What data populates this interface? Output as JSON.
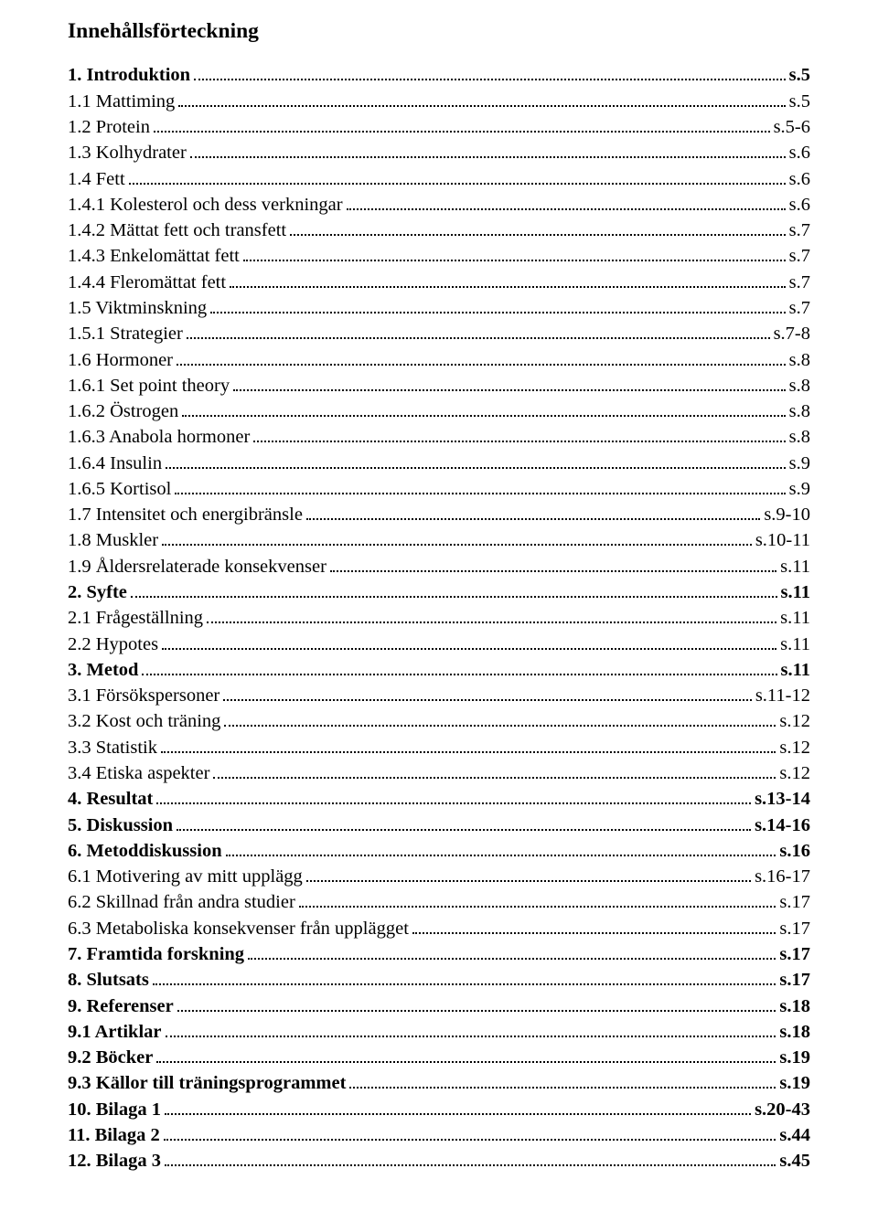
{
  "title": "Innehållsförteckning",
  "entries": [
    {
      "label": "1. Introduktion",
      "page": "s.5",
      "bold": true
    },
    {
      "label": "1.1 Mattiming",
      "page": "s.5",
      "bold": false
    },
    {
      "label": "1.2 Protein",
      "page": "s.5-6",
      "bold": false
    },
    {
      "label": "1.3 Kolhydrater",
      "page": "s.6",
      "bold": false
    },
    {
      "label": "1.4 Fett",
      "page": "s.6",
      "bold": false
    },
    {
      "label": "1.4.1 Kolesterol och dess verkningar",
      "page": "s.6",
      "bold": false
    },
    {
      "label": "1.4.2 Mättat fett och transfett",
      "page": "s.7",
      "bold": false
    },
    {
      "label": "1.4.3 Enkelomättat fett",
      "page": "s.7",
      "bold": false
    },
    {
      "label": "1.4.4 Fleromättat fett",
      "page": "s.7",
      "bold": false
    },
    {
      "label": "1.5 Viktminskning",
      "page": "s.7",
      "bold": false
    },
    {
      "label": "1.5.1 Strategier",
      "page": "s.7-8",
      "bold": false
    },
    {
      "label": "1.6 Hormoner",
      "page": "s.8",
      "bold": false
    },
    {
      "label": "1.6.1 Set point theory",
      "page": "s.8",
      "bold": false
    },
    {
      "label": "1.6.2 Östrogen",
      "page": "s.8",
      "bold": false
    },
    {
      "label": "1.6.3 Anabola hormoner",
      "page": "s.8",
      "bold": false
    },
    {
      "label": "1.6.4 Insulin",
      "page": "s.9",
      "bold": false
    },
    {
      "label": "1.6.5 Kortisol",
      "page": "s.9",
      "bold": false
    },
    {
      "label": "1.7 Intensitet och energibränsle",
      "page": "s.9-10",
      "bold": false
    },
    {
      "label": "1.8 Muskler",
      "page": "s.10-11",
      "bold": false
    },
    {
      "label": "1.9 Åldersrelaterade konsekvenser",
      "page": "s.11",
      "bold": false
    },
    {
      "label": "2. Syfte",
      "page": "s.11",
      "bold": true
    },
    {
      "label": "2.1 Frågeställning",
      "page": "s.11",
      "bold": false
    },
    {
      "label": "2.2 Hypotes",
      "page": "s.11",
      "bold": false
    },
    {
      "label": "3. Metod",
      "page": "s.11",
      "bold": true
    },
    {
      "label": "3.1 Försökspersoner",
      "page": "s.11-12",
      "bold": false
    },
    {
      "label": "3.2 Kost och träning",
      "page": "s.12",
      "bold": false
    },
    {
      "label": "3.3 Statistik",
      "page": "s.12",
      "bold": false
    },
    {
      "label": "3.4 Etiska aspekter",
      "page": "s.12",
      "bold": false
    },
    {
      "label": "4. Resultat",
      "page": "s.13-14",
      "bold": true
    },
    {
      "label": "5. Diskussion",
      "page": "s.14-16",
      "bold": true
    },
    {
      "label": "6. Metoddiskussion",
      "page": "s.16",
      "bold": true
    },
    {
      "label": "6.1 Motivering av mitt upplägg",
      "page": "s.16-17",
      "bold": false
    },
    {
      "label": "6.2 Skillnad från andra studier",
      "page": "s.17",
      "bold": false
    },
    {
      "label": "6.3 Metaboliska konsekvenser från upplägget",
      "page": "s.17",
      "bold": false
    },
    {
      "label": "7. Framtida forskning",
      "page": "s.17",
      "bold": true
    },
    {
      "label": "8. Slutsats",
      "page": "s.17",
      "bold": true
    },
    {
      "label": "9. Referenser",
      "page": "s.18",
      "bold": true
    },
    {
      "label": "9.1 Artiklar",
      "page": "s.18",
      "bold": true
    },
    {
      "label": "9.2 Böcker",
      "page": "s.19",
      "bold": true
    },
    {
      "label": "9.3 Källor till träningsprogrammet",
      "page": "s.19",
      "bold": true
    },
    {
      "label": "10. Bilaga 1",
      "page": "s.20-43",
      "bold": true
    },
    {
      "label": "11. Bilaga 2",
      "page": "s.44",
      "bold": true
    },
    {
      "label": "12. Bilaga 3",
      "page": "s.45",
      "bold": true
    }
  ]
}
